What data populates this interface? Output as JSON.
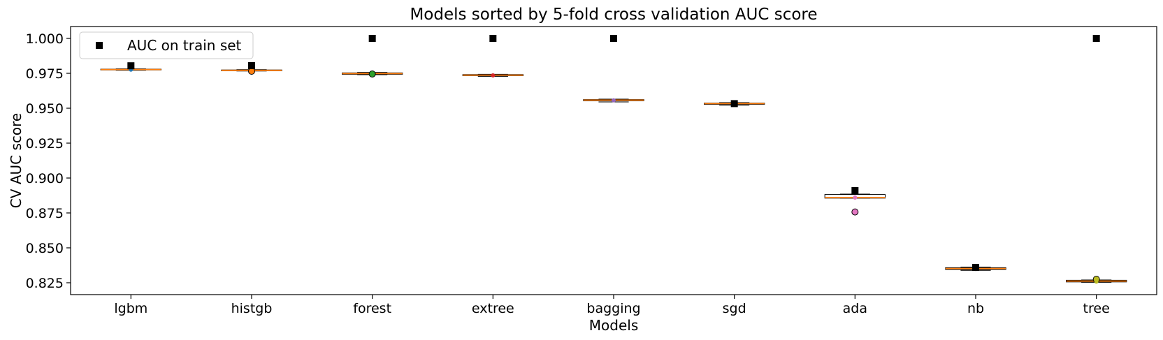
{
  "chart_data": {
    "type": "box",
    "title": "Models sorted by 5-fold cross validation AUC score",
    "xlabel": "Models",
    "ylabel": "CV AUC score",
    "ylim": [
      0.8165,
      1.0085
    ],
    "yticks": [
      "0.825",
      "0.850",
      "0.875",
      "0.900",
      "0.925",
      "0.950",
      "0.975",
      "1.000"
    ],
    "categories": [
      "lgbm",
      "histgb",
      "forest",
      "extree",
      "bagging",
      "sgd",
      "ada",
      "nb",
      "tree"
    ],
    "boxes": [
      {
        "min": 0.9772,
        "q1": 0.9774,
        "median": 0.9777,
        "q3": 0.978,
        "max": 0.9782,
        "mean": 0.9776,
        "outliers": []
      },
      {
        "min": 0.9766,
        "q1": 0.9768,
        "median": 0.9771,
        "q3": 0.9774,
        "max": 0.9776,
        "mean": 0.9768,
        "outliers": [
          0.9765
        ]
      },
      {
        "min": 0.974,
        "q1": 0.9743,
        "median": 0.9748,
        "q3": 0.9753,
        "max": 0.9756,
        "mean": 0.9746,
        "outliers": [
          0.9745
        ]
      },
      {
        "min": 0.9728,
        "q1": 0.9733,
        "median": 0.9737,
        "q3": 0.9741,
        "max": 0.9743,
        "mean": 0.9735,
        "outliers": []
      },
      {
        "min": 0.9545,
        "q1": 0.9553,
        "median": 0.9558,
        "q3": 0.9562,
        "max": 0.9565,
        "mean": 0.9556,
        "outliers": []
      },
      {
        "min": 0.9522,
        "q1": 0.9528,
        "median": 0.9533,
        "q3": 0.9537,
        "max": 0.954,
        "mean": 0.9532,
        "outliers": []
      },
      {
        "min": 0.8856,
        "q1": 0.8856,
        "median": 0.886,
        "q3": 0.8882,
        "max": 0.8885,
        "mean": 0.886,
        "outliers": [
          0.8757
        ]
      },
      {
        "min": 0.8339,
        "q1": 0.8345,
        "median": 0.8352,
        "q3": 0.8358,
        "max": 0.8362,
        "mean": 0.8348,
        "outliers": []
      },
      {
        "min": 0.8253,
        "q1": 0.8256,
        "median": 0.8262,
        "q3": 0.8268,
        "max": 0.827,
        "mean": 0.8258,
        "outliers": [
          0.8275
        ]
      }
    ],
    "train_auc": [
      0.9804,
      0.9805,
      1.0,
      1.0,
      1.0,
      0.9533,
      0.891,
      0.836,
      1.0
    ],
    "legend": {
      "label": "AUC on train set",
      "position": "upper left"
    },
    "colors": {
      "median": "#ff7f0e",
      "train_marker": "#000000",
      "box_edge": "#000000",
      "means": [
        "#1f77b4",
        "#ff7f0e",
        "#2ca02c",
        "#d62728",
        "#9467bd",
        "#8c564b",
        "#e377c2",
        "#7f7f7f",
        "#bcbd22"
      ]
    }
  }
}
